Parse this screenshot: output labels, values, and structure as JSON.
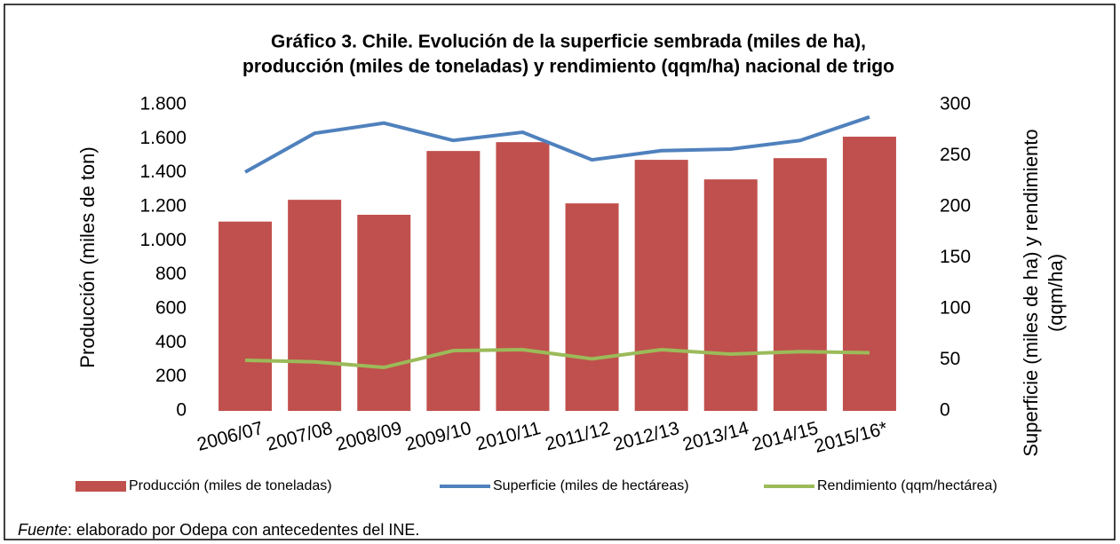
{
  "chart_data": {
    "type": "bar_line",
    "title": [
      "Gráfico 3. Chile. Evolución de la superficie sembrada (miles de ha),",
      "producción (miles de toneladas) y rendimiento (qqm/ha) nacional de trigo"
    ],
    "y_label": "Producción (miles de ton)",
    "y2_label": [
      "Superficie (miles de ha) y rendimiento",
      "(qqm/ha)"
    ],
    "categories": [
      "2006/07",
      "2007/08",
      "2008/09",
      "2009/10",
      "2010/11",
      "2011/12",
      "2012/13",
      "2013/14",
      "2014/15",
      "2015/16*"
    ],
    "series": [
      {
        "name": "Producción (miles de toneladas)",
        "kind": "bar",
        "color": "#c0504d",
        "values": [
          1113,
          1241,
          1153,
          1528,
          1580,
          1220,
          1476,
          1361,
          1486,
          1612
        ]
      },
      {
        "name": "Superficie (miles de hectáreas)",
        "kind": "line",
        "axis": "y2",
        "color": "#4f81bd",
        "values": [
          234,
          272,
          282,
          265,
          273,
          246,
          255,
          256.5,
          265,
          288
        ]
      },
      {
        "name": "Rendimiento (qqm/hectárea)",
        "kind": "line",
        "axis": "y2",
        "color": "#9bbb59",
        "values": [
          49.6,
          48,
          42.6,
          59,
          60,
          51,
          60,
          55.6,
          58,
          57
        ]
      }
    ],
    "ylim": [
      0,
      1800
    ],
    "yticks": [
      0,
      200,
      400,
      600,
      800,
      {
        "value": 1000,
        "label": "1.000"
      },
      {
        "value": 1200,
        "label": "1.200"
      },
      {
        "value": 1400,
        "label": "1.400"
      },
      {
        "value": 1600,
        "label": "1.600"
      },
      {
        "value": 1800,
        "label": "1.800"
      }
    ],
    "y2lim": [
      0,
      300
    ],
    "y2ticks": [
      0,
      50,
      100,
      150,
      200,
      250,
      300
    ],
    "legend": "bottom",
    "source": {
      "label": "Fuente",
      "text": ": elaborado por Odepa con antecedentes del INE."
    }
  }
}
